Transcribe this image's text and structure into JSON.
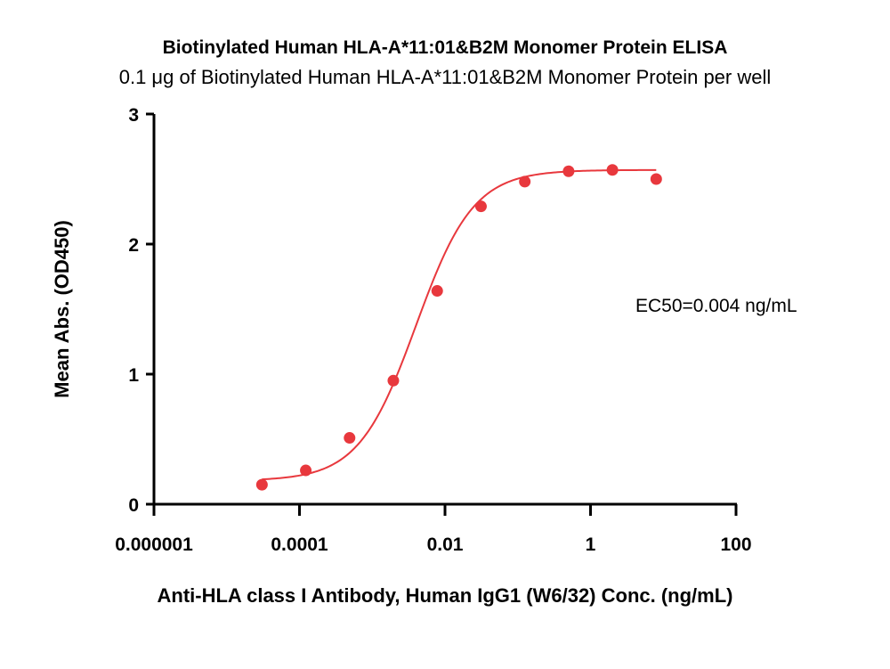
{
  "chart_data": {
    "type": "scatter",
    "title": "Biotinylated Human HLA-A*11:01&B2M Monomer Protein ELISA",
    "subtitle": "0.1 μg of Biotinylated Human HLA-A*11:01&B2M Monomer Protein per well",
    "xlabel": "Anti-HLA class I Antibody, Human IgG1 (W6/32) Conc. (ng/mL)",
    "ylabel": "Mean Abs. (OD450)",
    "x_scale": "log",
    "xlim": [
      1e-06,
      100
    ],
    "ylim": [
      0,
      3
    ],
    "x_ticks": [
      1e-06,
      0.0001,
      0.01,
      1,
      100
    ],
    "x_tick_labels": [
      "0.000001",
      "0.0001",
      "0.01",
      "1",
      "100"
    ],
    "y_ticks": [
      0,
      1,
      2,
      3
    ],
    "y_tick_labels": [
      "0",
      "1",
      "2",
      "3"
    ],
    "grid": false,
    "annotation": "EC50=0.004 ng/mL",
    "series": [
      {
        "color": "#e8383d",
        "x": [
          3.05e-05,
          0.000122,
          0.000488,
          0.00195,
          0.00781,
          0.03125,
          0.125,
          0.5,
          2,
          8
        ],
        "values": [
          0.15,
          0.26,
          0.51,
          0.95,
          1.64,
          2.29,
          2.48,
          2.56,
          2.57,
          2.5
        ]
      }
    ],
    "fit": {
      "model": "4PL",
      "bottom": 0.18,
      "top": 2.57,
      "ec50": 0.004,
      "hill": 1.1,
      "x_range": [
        3.05e-05,
        8
      ]
    }
  }
}
